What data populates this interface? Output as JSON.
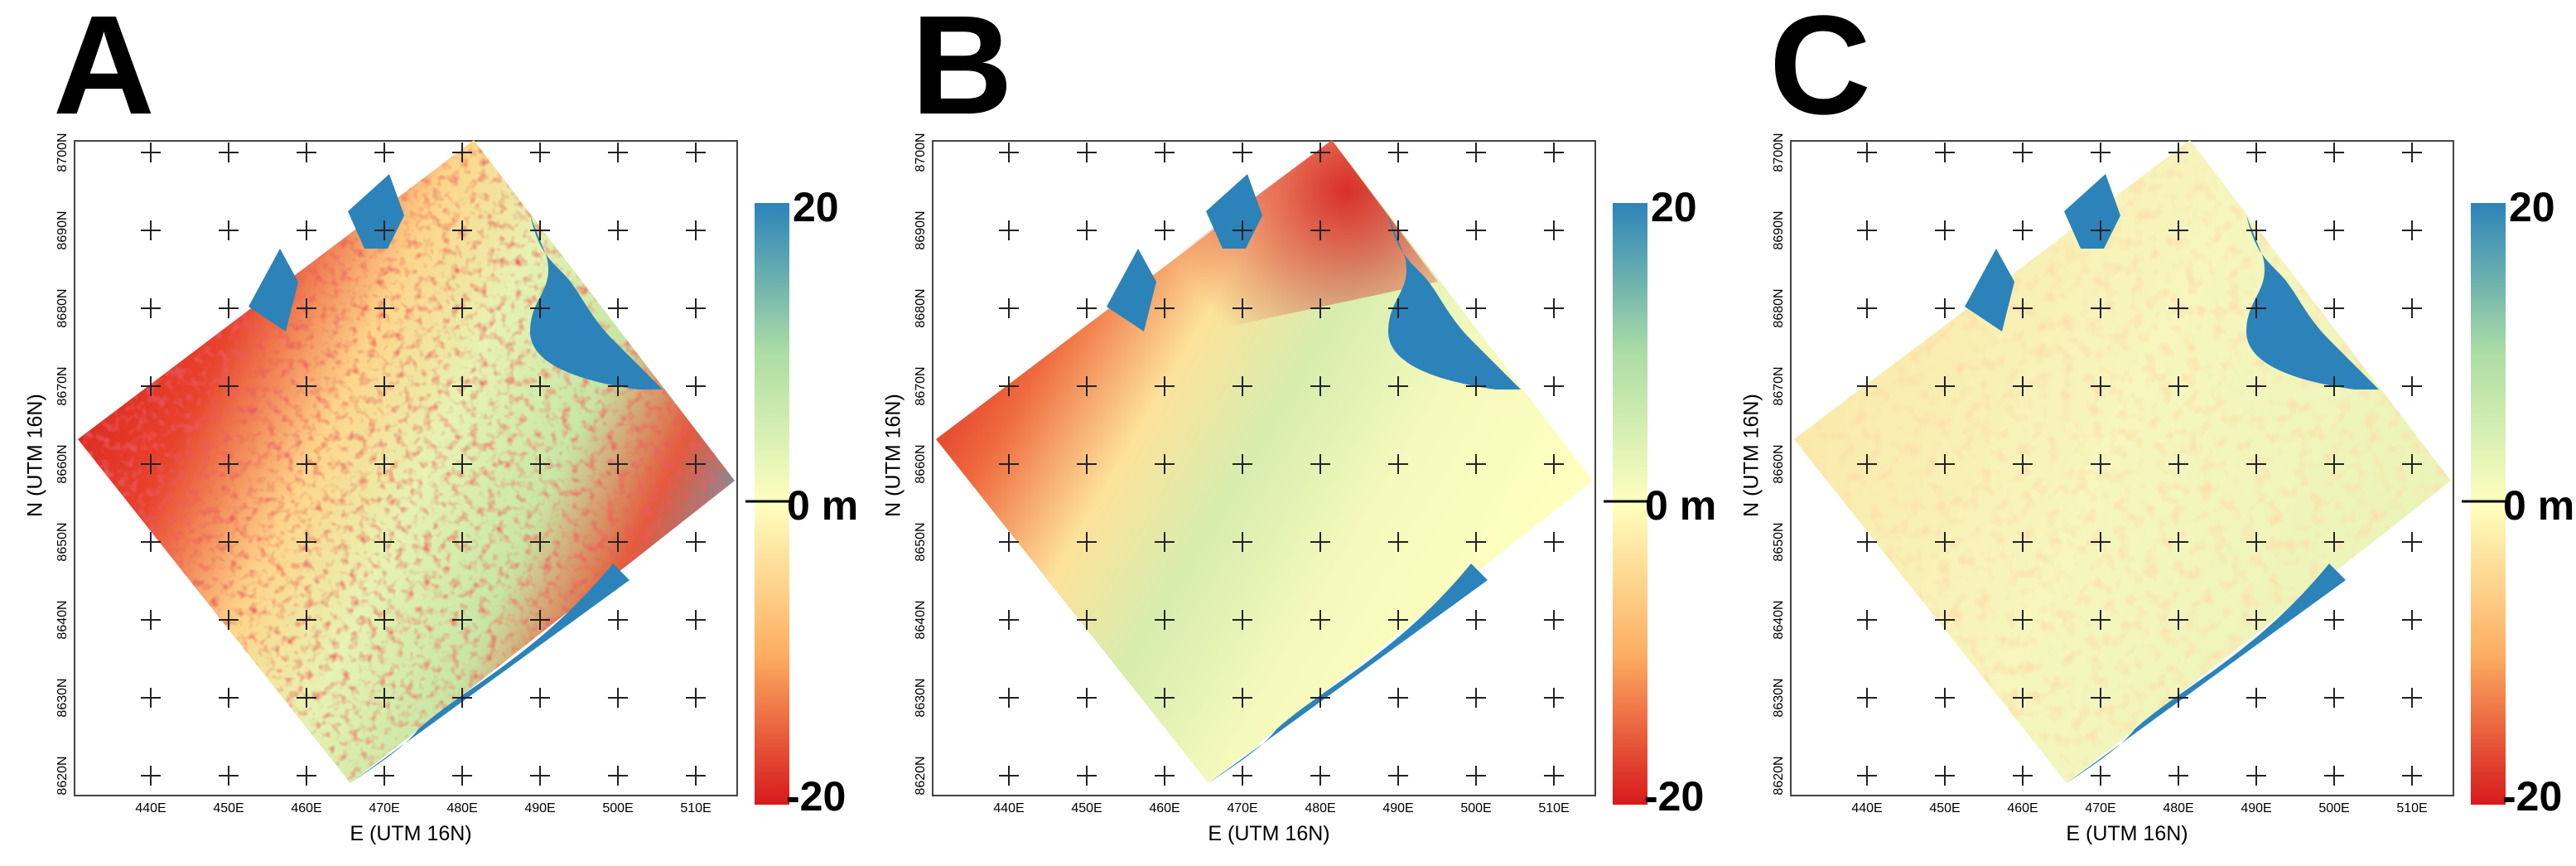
{
  "colors": {
    "red": "#d7191c",
    "orange": "#fdae61",
    "yellow": "#ffffbf",
    "green": "#abdda4",
    "blue": "#2b83ba"
  },
  "axes": {
    "xlabel": "E (UTM 16N)",
    "ylabel": "N (UTM 16N)",
    "xticks": [
      "440E",
      "450E",
      "460E",
      "470E",
      "480E",
      "490E",
      "500E",
      "510E"
    ],
    "yticks": [
      "8700N",
      "8690N",
      "8680N",
      "8670N",
      "8660N",
      "8650N",
      "8640N",
      "8630N",
      "8620N"
    ]
  },
  "colorbar": {
    "max_label": "20",
    "zero_label": "0 m",
    "min_label": "-20",
    "min": -20,
    "max": 20,
    "unit": "m"
  },
  "panels": [
    {
      "letter": "A",
      "description_tone": "strong red northwest, blue southeast",
      "icon": "elevation-difference-map"
    },
    {
      "letter": "B",
      "description_tone": "smooth red northwest, green centre",
      "icon": "elevation-difference-map"
    },
    {
      "letter": "C",
      "description_tone": "near-zero pale yellow",
      "icon": "elevation-difference-map"
    }
  ]
}
